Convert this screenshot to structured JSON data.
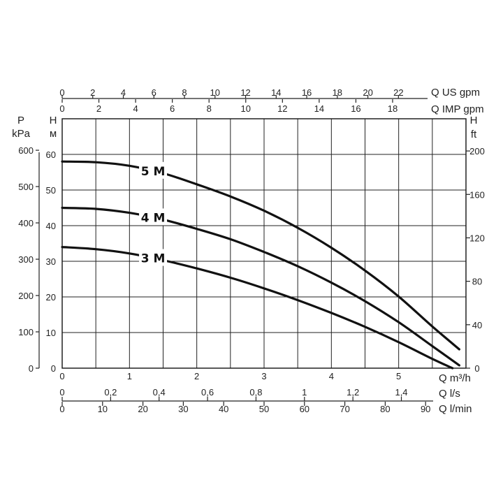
{
  "chart_data": {
    "type": "line",
    "series": [
      {
        "name": "5 M",
        "x": [
          0,
          0.5,
          1,
          1.5,
          2,
          2.5,
          3,
          3.5,
          4,
          4.5,
          5,
          5.5,
          5.9
        ],
        "values": [
          58,
          57.8,
          56.8,
          54.7,
          51.6,
          48.2,
          44.2,
          39.4,
          33.8,
          27.4,
          20.1,
          11.7,
          5.3
        ]
      },
      {
        "name": "4 M",
        "x": [
          0,
          0.5,
          1,
          1.5,
          2,
          2.5,
          3,
          3.5,
          4,
          4.5,
          5,
          5.5,
          5.9
        ],
        "values": [
          45,
          44.7,
          43.6,
          41.7,
          39.1,
          36.2,
          32.6,
          28.6,
          24.0,
          18.8,
          12.9,
          6.2,
          0.8
        ]
      },
      {
        "name": "3 M",
        "x": [
          0,
          0.5,
          1,
          1.5,
          2,
          2.5,
          3,
          3.5,
          4,
          4.5,
          5,
          5.5,
          5.8
        ],
        "values": [
          34,
          33.4,
          32.2,
          30.3,
          28.0,
          25.4,
          22.4,
          19.1,
          15.5,
          11.6,
          7.3,
          2.6,
          0
        ]
      }
    ],
    "y_axes": {
      "pressure": {
        "label_top": "P",
        "label_unit": "kPa",
        "ticks": [
          "600",
          "500",
          "400",
          "300",
          "200",
          "100",
          "0"
        ]
      },
      "head_m": {
        "label_top": "H",
        "label_unit": "м",
        "ticks": [
          "60",
          "50",
          "40",
          "30",
          "20",
          "10",
          "0"
        ],
        "ylim": [
          0,
          70
        ]
      },
      "head_ft": {
        "label_top": "H",
        "label_unit": "ft",
        "ticks": [
          "200",
          "160",
          "120",
          "80",
          "40",
          "0"
        ]
      }
    },
    "x_axes": {
      "us_gpm": {
        "label": "Q US gpm",
        "ticks": [
          "0",
          "2",
          "4",
          "6",
          "8",
          "10",
          "12",
          "14",
          "16",
          "18",
          "20",
          "22"
        ]
      },
      "imp_gpm": {
        "label": "Q IMP gpm",
        "ticks": [
          "0",
          "2",
          "4",
          "6",
          "8",
          "10",
          "12",
          "14",
          "16",
          "18"
        ]
      },
      "m3h": {
        "label": "Q m³/h",
        "ticks": [
          "0",
          "1",
          "2",
          "3",
          "4",
          "5"
        ],
        "xlim": [
          0,
          6
        ]
      },
      "ls": {
        "label": "Q l/s",
        "ticks": [
          "0",
          "0,2",
          "0,4",
          "0,6",
          "0,8",
          "1",
          "1,2",
          "1,4"
        ]
      },
      "lmin": {
        "label": "Q l/min",
        "ticks": [
          "0",
          "10",
          "20",
          "30",
          "40",
          "50",
          "60",
          "70",
          "80",
          "90"
        ]
      }
    },
    "grid": true
  }
}
